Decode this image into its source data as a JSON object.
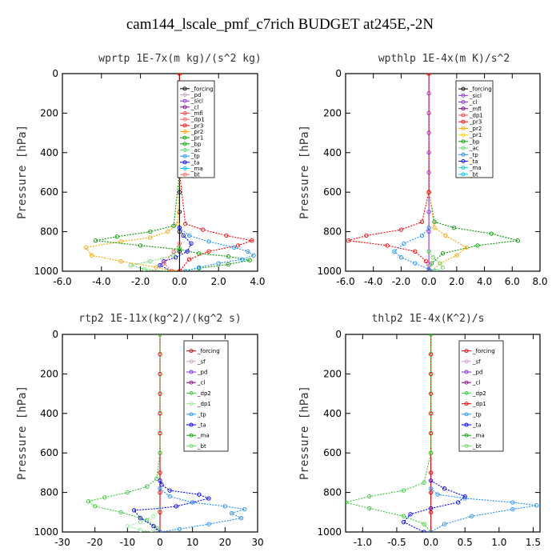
{
  "title": "cam144_lscale_pmf_c7rich  BUDGET at245E,-2N",
  "chart_data": [
    {
      "type": "line",
      "title": "wprtp  1E-7x(m kg)/(s^2 kg)",
      "ylabel": "Pressure [hPa]",
      "xlim": [
        -6,
        4
      ],
      "ylim": [
        1000,
        0
      ],
      "xticks": [
        "-6.0",
        "-4.0",
        "-2.0",
        "0.0",
        "2.0",
        "4.0"
      ],
      "xtick_values": [
        -6,
        -4,
        -2,
        0,
        2,
        4
      ],
      "yticks": [
        "0",
        "200",
        "400",
        "600",
        "800",
        "1000"
      ],
      "ytick_values": [
        0,
        200,
        400,
        600,
        800,
        1000
      ],
      "legend": [
        "_forcing",
        "_pd",
        "_sicl",
        "_cl",
        "_mfl",
        "_dp1",
        "_pr3",
        "_pr2",
        "_pr1",
        "_bp",
        "_ac",
        "_tp",
        "_ta",
        "_ma",
        "_bt"
      ],
      "series": [
        {
          "name": "_forcing",
          "color": "#000000",
          "x": [
            0,
            0,
            0,
            0,
            0,
            0,
            0,
            0,
            0,
            0,
            0
          ],
          "y": [
            0,
            100,
            200,
            300,
            400,
            500,
            600,
            700,
            800,
            900,
            1000
          ]
        },
        {
          "name": "_pr2",
          "color": "#ffa500",
          "x": [
            0,
            0,
            0,
            -0.1,
            -0.6,
            -1.5,
            -3,
            -4.8,
            -4.5,
            -3,
            -1.2,
            -0.3
          ],
          "y": [
            0,
            200,
            500,
            760,
            800,
            830,
            850,
            880,
            920,
            950,
            980,
            1000
          ]
        },
        {
          "name": "_bp",
          "color": "#00a000",
          "x": [
            0,
            0,
            -0.3,
            -1.5,
            -3.2,
            -4.3,
            -2,
            0,
            1,
            2.5,
            3.6,
            2.5,
            1,
            0
          ],
          "y": [
            0,
            500,
            770,
            800,
            825,
            845,
            870,
            890,
            910,
            925,
            945,
            965,
            985,
            1000
          ]
        },
        {
          "name": "_pr3",
          "color": "#ff0000",
          "x": [
            0,
            0,
            0.3,
            1.2,
            2.4,
            3.7,
            3,
            1.5,
            0.5,
            0
          ],
          "y": [
            0,
            500,
            760,
            790,
            820,
            845,
            870,
            900,
            940,
            1000
          ]
        },
        {
          "name": "_tp",
          "color": "#1e90ff",
          "x": [
            0,
            0.5,
            1.5,
            2.8,
            3.5,
            3.8,
            3.2,
            2,
            1,
            0.3
          ],
          "y": [
            780,
            820,
            850,
            880,
            900,
            920,
            940,
            960,
            980,
            1000
          ]
        },
        {
          "name": "_ta",
          "color": "#0000ff",
          "x": [
            0,
            0.2,
            0.6,
            0.4,
            -0.2,
            -0.8,
            -1,
            -0.4
          ],
          "y": [
            780,
            820,
            860,
            900,
            930,
            950,
            970,
            1000
          ]
        },
        {
          "name": "_ac",
          "color": "#66dd66",
          "x": [
            0,
            -0.3,
            -1.5,
            -2.5,
            -1.8,
            -0.6
          ],
          "y": [
            880,
            920,
            950,
            970,
            990,
            1000
          ]
        },
        {
          "name": "_dp1",
          "color": "#ff6060",
          "x": [
            0,
            -0.3,
            -0.8,
            -0.4
          ],
          "y": [
            860,
            900,
            960,
            1000
          ]
        }
      ]
    },
    {
      "type": "line",
      "title": "wpthlp  1E-4x(m K)/s^2",
      "ylabel": "Pressure [hPa]",
      "xlim": [
        -6,
        8
      ],
      "ylim": [
        1000,
        0
      ],
      "xticks": [
        "-6.0",
        "-4.0",
        "-2.0",
        "0.0",
        "2.0",
        "4.0",
        "6.0",
        "8.0"
      ],
      "xtick_values": [
        -6,
        -4,
        -2,
        0,
        2,
        4,
        6,
        8
      ],
      "yticks": [
        "0",
        "200",
        "400",
        "600",
        "800",
        "1000"
      ],
      "ytick_values": [
        0,
        200,
        400,
        600,
        800,
        1000
      ],
      "legend": [
        "_forcing",
        "_sicl",
        "_cl",
        "_mfl",
        "_dp1",
        "_pr3",
        "_pr2",
        "_pr1",
        "_bp",
        "_ac",
        "_tp",
        "_ta",
        "_ma",
        "_bt"
      ],
      "series": [
        {
          "name": "_sicl",
          "color": "#8a2be2",
          "x": [
            0,
            0,
            0,
            0,
            0,
            0,
            0,
            0,
            0,
            0,
            0
          ],
          "y": [
            0,
            100,
            200,
            300,
            400,
            500,
            600,
            700,
            800,
            900,
            1000
          ]
        },
        {
          "name": "_bp",
          "color": "#00a000",
          "x": [
            0,
            0,
            0.4,
            1.8,
            4.5,
            6.4,
            3.5,
            1,
            0.2,
            0
          ],
          "y": [
            0,
            600,
            750,
            780,
            810,
            845,
            870,
            910,
            960,
            1000
          ]
        },
        {
          "name": "_pr2",
          "color": "#ffa500",
          "x": [
            0,
            0,
            0.4,
            1.2,
            2.7,
            2,
            0.8,
            0.2
          ],
          "y": [
            0,
            600,
            780,
            820,
            880,
            920,
            960,
            1000
          ]
        },
        {
          "name": "_pr3",
          "color": "#ff0000",
          "x": [
            0,
            0,
            -0.5,
            -2,
            -4.5,
            -5.8,
            -3,
            -1,
            -0.2,
            0
          ],
          "y": [
            0,
            600,
            750,
            790,
            820,
            845,
            870,
            900,
            950,
            1000
          ]
        },
        {
          "name": "_tp",
          "color": "#1e90ff",
          "x": [
            0,
            -0.5,
            -1.8,
            -2.5,
            -2,
            -1,
            0,
            0.4
          ],
          "y": [
            780,
            820,
            860,
            900,
            930,
            960,
            990,
            1000
          ]
        },
        {
          "name": "_ac",
          "color": "#66dd66",
          "x": [
            0,
            0.3,
            0.8,
            1,
            0.5
          ],
          "y": [
            900,
            930,
            960,
            980,
            1000
          ]
        }
      ]
    },
    {
      "type": "line",
      "title": "rtp2  1E-11x(kg^2)/(kg^2 s)",
      "ylabel": "Pressure [hPa]",
      "xlim": [
        -30,
        30
      ],
      "ylim": [
        1000,
        0
      ],
      "xticks": [
        "-30",
        "-20",
        "-10",
        "0",
        "10",
        "20",
        "30"
      ],
      "xtick_values": [
        -30,
        -20,
        -10,
        0,
        10,
        20,
        30
      ],
      "yticks": [
        "0",
        "200",
        "400",
        "600",
        "800",
        "1000"
      ],
      "ytick_values": [
        0,
        200,
        400,
        600,
        800,
        1000
      ],
      "legend": [
        "_forcing",
        "_sf",
        "_pd",
        "_cl",
        "_dp2",
        "_dp1",
        "_tp",
        "_ta",
        "_ma",
        "_bt"
      ],
      "series": [
        {
          "name": "_forcing",
          "color": "#dd0000",
          "x": [
            0,
            0,
            0,
            0,
            0,
            0,
            0,
            0,
            0,
            0,
            0
          ],
          "y": [
            0,
            100,
            200,
            300,
            400,
            500,
            600,
            700,
            800,
            900,
            1000
          ]
        },
        {
          "name": "_dp2",
          "color": "#33cc33",
          "x": [
            0,
            0,
            -1,
            -4,
            -10,
            -17,
            -22,
            -20,
            -12,
            -4,
            -1,
            0
          ],
          "y": [
            0,
            600,
            730,
            770,
            800,
            825,
            845,
            870,
            900,
            940,
            980,
            1000
          ]
        },
        {
          "name": "_ta",
          "color": "#0000ff",
          "x": [
            0,
            0.5,
            3,
            12,
            15,
            10,
            5,
            0,
            -8,
            -6,
            -2,
            0
          ],
          "y": [
            740,
            760,
            790,
            810,
            830,
            850,
            870,
            880,
            890,
            930,
            970,
            1000
          ]
        },
        {
          "name": "_tp",
          "color": "#1e90ff",
          "x": [
            0,
            3,
            10,
            20,
            26,
            22,
            25,
            15,
            6,
            0
          ],
          "y": [
            780,
            820,
            850,
            870,
            885,
            905,
            930,
            960,
            985,
            1000
          ]
        },
        {
          "name": "_dp1",
          "color": "#99ee99",
          "x": [
            0,
            -2,
            -6,
            -10,
            -6,
            -2
          ],
          "y": [
            880,
            920,
            950,
            970,
            990,
            1000
          ]
        }
      ]
    },
    {
      "type": "line",
      "title": "thlp2  1E-4x(K^2)/s",
      "ylabel": "Pressure [hPa]",
      "xlim": [
        -1.25,
        1.6
      ],
      "ylim": [
        1000,
        0
      ],
      "xticks": [
        "-1.0",
        "-0.5",
        "0.0",
        "0.5",
        "1.0",
        "1.5"
      ],
      "xtick_values": [
        -1,
        -0.5,
        0,
        0.5,
        1,
        1.5
      ],
      "yticks": [
        "0",
        "200",
        "400",
        "600",
        "800",
        "1000"
      ],
      "ytick_values": [
        0,
        200,
        400,
        600,
        800,
        1000
      ],
      "legend": [
        "_forcing",
        "_sf",
        "_pd",
        "_cl",
        "_dp2",
        "_dp1",
        "_tp",
        "_ta",
        "_ma",
        "_bt"
      ],
      "series": [
        {
          "name": "_forcing",
          "color": "#dd0000",
          "x": [
            0,
            0,
            0,
            0,
            0,
            0,
            0,
            0,
            0,
            0,
            0
          ],
          "y": [
            0,
            100,
            200,
            300,
            400,
            500,
            600,
            700,
            800,
            900,
            1000
          ]
        },
        {
          "name": "_dp2",
          "color": "#33cc33",
          "x": [
            0,
            0,
            -0.1,
            -0.4,
            -0.9,
            -1.25,
            -0.9,
            -0.4,
            -0.1,
            0
          ],
          "y": [
            0,
            600,
            750,
            790,
            820,
            850,
            880,
            920,
            960,
            1000
          ]
        },
        {
          "name": "_tp",
          "color": "#1e90ff",
          "x": [
            0,
            0.1,
            0.5,
            1.2,
            1.55,
            1.2,
            0.6,
            0.2,
            0
          ],
          "y": [
            780,
            810,
            830,
            850,
            865,
            885,
            920,
            960,
            1000
          ]
        },
        {
          "name": "_ta",
          "color": "#0000ff",
          "x": [
            0,
            0.2,
            0.5,
            0.4,
            0,
            -0.3,
            -0.4,
            -0.1
          ],
          "y": [
            740,
            780,
            820,
            850,
            880,
            910,
            950,
            1000
          ]
        }
      ]
    }
  ]
}
